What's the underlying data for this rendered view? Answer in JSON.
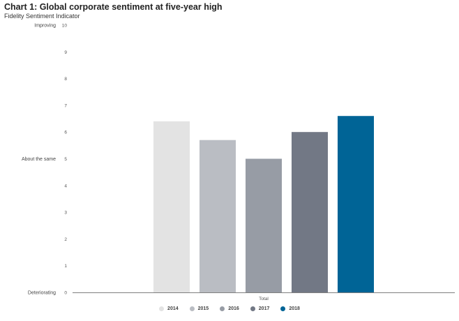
{
  "header": {
    "title": "Chart 1: Global corporate sentiment at five-year high",
    "subtitle": "Fidelity Sentiment Indicator"
  },
  "chart_data": {
    "type": "bar",
    "categories": [
      "Total"
    ],
    "series": [
      {
        "name": "2014",
        "values": [
          6.4
        ],
        "color": "#e3e3e3"
      },
      {
        "name": "2015",
        "values": [
          5.7
        ],
        "color": "#babdc3"
      },
      {
        "name": "2016",
        "values": [
          5.0
        ],
        "color": "#979ca5"
      },
      {
        "name": "2017",
        "values": [
          6.0
        ],
        "color": "#727885"
      },
      {
        "name": "2018",
        "values": [
          6.6
        ],
        "color": "#006496"
      }
    ],
    "ylim": [
      0,
      10
    ],
    "yticks": [
      "0",
      "1",
      "2",
      "3",
      "4",
      "5",
      "6",
      "7",
      "8",
      "9",
      "10"
    ],
    "side_labels": {
      "top": "Improving",
      "middle": "About the same",
      "bottom": "Deteriorating"
    },
    "grid": false,
    "legend_position": "bottom-center"
  }
}
